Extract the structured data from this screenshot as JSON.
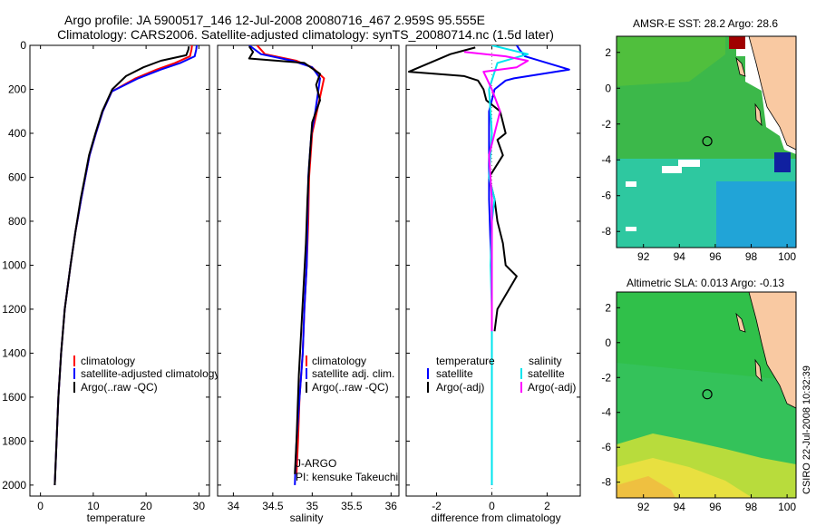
{
  "title": {
    "line1": "Argo profile: JA 5900517_146 12-Jul-2008 20080716_467 2.959S 95.555E",
    "line2": "Climatology: CARS2006. Satellite-adjusted climatology: synTS_20080714.nc (1.5d later)"
  },
  "colors": {
    "clim": "#ff0000",
    "sat": "#0000ff",
    "argo": "#000000",
    "sal_sat": "#00e5ee",
    "sal_argo": "#ff00ff"
  },
  "map_colors": {
    "land": "#f9c9a2",
    "nodata": "#ffffff",
    "sst_green": "#3cb84a",
    "sst_teal": "#2ec8a0",
    "sst_blue": "#1a7fe0",
    "sst_dark": "#1020a0",
    "sst_hot": "#a00000",
    "sla_green": "#34c25a",
    "sla_yellow": "#e8e040"
  },
  "credit": "CSIRO 22-Jul-2008 10:32:39",
  "chart_data": [
    {
      "type": "line",
      "id": "temperature",
      "xlabel": "temperature",
      "xlim": [
        -2,
        32
      ],
      "ylim": [
        2050,
        0
      ],
      "xticks": [
        "0",
        "10",
        "20",
        "30"
      ],
      "xtick_values": [
        0,
        10,
        20,
        30
      ],
      "yticks": [
        "0",
        "200",
        "400",
        "600",
        "800",
        "1000",
        "1200",
        "1400",
        "1600",
        "1800",
        "2000"
      ],
      "ytick_values": [
        0,
        200,
        400,
        600,
        800,
        1000,
        1200,
        1400,
        1600,
        1800,
        2000
      ],
      "legend": [
        "climatology",
        "satellite-adjusted climatology",
        "Argo(..raw -QC)"
      ],
      "series": [
        {
          "name": "climatology",
          "color": "clim",
          "x": [
            28.7,
            28.6,
            28.3,
            25.5,
            22,
            18,
            13.5,
            11.8,
            10.5,
            9.3,
            8.5,
            7.7,
            6.6,
            5.7,
            4.6,
            3.9,
            3.4,
            2.7
          ],
          "y": [
            0,
            20,
            50,
            80,
            110,
            150,
            210,
            300,
            400,
            500,
            600,
            700,
            850,
            1000,
            1200,
            1400,
            1600,
            2000
          ]
        },
        {
          "name": "satellite",
          "color": "sat",
          "x": [
            29.6,
            29.5,
            29.2,
            26.5,
            22.8,
            18.5,
            13.5,
            11.8,
            10.5,
            9.3,
            8.5,
            7.7,
            6.6,
            5.7,
            4.6,
            3.9,
            3.4,
            2.7
          ],
          "y": [
            0,
            20,
            50,
            80,
            110,
            150,
            210,
            300,
            400,
            500,
            600,
            700,
            850,
            1000,
            1200,
            1400,
            1600,
            2000
          ]
        },
        {
          "name": "Argo",
          "color": "argo",
          "x": [
            28.1,
            28.0,
            27.6,
            22.8,
            19.5,
            16.2,
            13.6,
            11.7,
            10.4,
            9.2,
            8.4,
            7.6,
            6.6,
            5.7,
            4.6,
            3.9,
            3.4,
            2.7
          ],
          "y": [
            5,
            20,
            45,
            70,
            100,
            140,
            200,
            300,
            400,
            500,
            600,
            700,
            850,
            1000,
            1200,
            1400,
            1600,
            2000
          ]
        }
      ]
    },
    {
      "type": "line",
      "id": "salinity",
      "xlabel": "salinity",
      "xlim": [
        33.8,
        36.1
      ],
      "ylim": [
        2050,
        0
      ],
      "xticks": [
        "34",
        "34.5",
        "35",
        "35.5",
        "36"
      ],
      "xtick_values": [
        34,
        34.5,
        35,
        35.5,
        36
      ],
      "legend": [
        "climatology",
        "satellite adj. clim.",
        "Argo(..raw -QC)"
      ],
      "annotation": [
        "J-ARGO",
        "PI: kensuke Takeuchi"
      ],
      "series": [
        {
          "name": "climatology",
          "color": "clim",
          "x": [
            34.3,
            34.4,
            34.8,
            35.0,
            35.15,
            35.12,
            35.06,
            35.0,
            34.98,
            34.96,
            34.95,
            34.93,
            34.9,
            34.88,
            34.84,
            34.82,
            34.8
          ],
          "y": [
            0,
            40,
            70,
            100,
            150,
            200,
            300,
            400,
            500,
            600,
            800,
            1000,
            1200,
            1400,
            1600,
            1800,
            1950
          ]
        },
        {
          "name": "satellite",
          "color": "sat",
          "x": [
            34.2,
            34.35,
            34.75,
            35.0,
            35.1,
            35.08,
            35.04,
            34.99,
            34.97,
            34.95,
            34.94,
            34.93,
            34.9,
            34.88,
            34.84,
            34.8,
            34.78
          ],
          "y": [
            0,
            40,
            70,
            100,
            150,
            200,
            300,
            400,
            500,
            600,
            800,
            1000,
            1200,
            1400,
            1600,
            1800,
            2000
          ]
        },
        {
          "name": "Argo",
          "color": "argo",
          "x": [
            34.2,
            34.25,
            34.2,
            34.9,
            35.1,
            35.05,
            35.1,
            35.0,
            34.98,
            34.96,
            34.94,
            34.92,
            34.89,
            34.86,
            34.83,
            34.8,
            34.78
          ],
          "y": [
            5,
            30,
            60,
            80,
            130,
            180,
            250,
            350,
            450,
            550,
            700,
            900,
            1100,
            1300,
            1500,
            1800,
            1950
          ]
        }
      ]
    },
    {
      "type": "line",
      "id": "difference",
      "xlabel": "difference from climatology",
      "xlim": [
        -3.1,
        3.2
      ],
      "ylim": [
        2050,
        0
      ],
      "xticks": [
        "-2",
        "0",
        "2"
      ],
      "xtick_values": [
        -2,
        0,
        2
      ],
      "legend_left_title": "temperature",
      "legend_left": [
        "satellite",
        "Argo(-adj)"
      ],
      "legend_right_title": "salinity",
      "legend_right": [
        "satellite",
        "Argo(-adj)"
      ],
      "series": [
        {
          "name": "temperature satellite",
          "color": "sat",
          "x": [
            0.9,
            1.0,
            1.2,
            2.8,
            0.8,
            0.5,
            0.1,
            -0.1,
            -0.1,
            -0.1,
            -0.05,
            0,
            0,
            0,
            0,
            0
          ],
          "y": [
            0,
            20,
            50,
            110,
            150,
            160,
            200,
            300,
            500,
            700,
            900,
            1100,
            1300,
            1500,
            1800,
            2000
          ]
        },
        {
          "name": "temperature Argo(-adj)",
          "color": "argo",
          "x": [
            -0.6,
            -1.5,
            -3.0,
            -1.0,
            -0.5,
            -0.3,
            -0.2,
            0.3,
            0.5,
            0.2,
            0.4,
            -0.1,
            0.1,
            0.2,
            0.4,
            0.5,
            0.9,
            0.2,
            0.1
          ],
          "y": [
            10,
            40,
            120,
            140,
            160,
            200,
            250,
            300,
            400,
            430,
            500,
            600,
            700,
            800,
            900,
            1000,
            1050,
            1200,
            1300
          ]
        },
        {
          "name": "salinity satellite",
          "color": "sal_sat",
          "x": [
            0.0,
            1.3,
            0.2,
            -0.1,
            0,
            -0.1,
            0.1,
            0,
            -0.05,
            0,
            0,
            0,
            0
          ],
          "y": [
            0,
            40,
            80,
            200,
            400,
            600,
            700,
            800,
            1000,
            1200,
            1500,
            1800,
            2000
          ]
        },
        {
          "name": "salinity Argo(-adj)",
          "color": "sal_argo",
          "x": [
            -1.0,
            0.5,
            1.3,
            0.9,
            -0.3,
            0,
            0.3,
            -0.1,
            0,
            0,
            0
          ],
          "y": [
            30,
            50,
            70,
            100,
            120,
            200,
            300,
            500,
            700,
            1000,
            1300
          ]
        }
      ]
    },
    {
      "type": "heatmap",
      "id": "sst-map",
      "title": "AMSR-E SST: 28.2 Argo: 28.6",
      "xlim": [
        90.5,
        100.5
      ],
      "ylim": [
        -8.9,
        2.9
      ],
      "xticks": [
        "92",
        "94",
        "96",
        "98",
        "100"
      ],
      "xtick_values": [
        92,
        94,
        96,
        98,
        100
      ],
      "yticks": [
        "2",
        "0",
        "-2",
        "-4",
        "-6",
        "-8"
      ],
      "ytick_values": [
        2,
        0,
        -2,
        -4,
        -6,
        -8
      ],
      "marker": {
        "lon": 95.555,
        "lat": -2.959
      }
    },
    {
      "type": "heatmap",
      "id": "sla-map",
      "title": "Altimetric SLA: 0.013 Argo: -0.13",
      "xlim": [
        90.5,
        100.5
      ],
      "ylim": [
        -8.9,
        2.9
      ],
      "xticks": [
        "92",
        "94",
        "96",
        "98",
        "100"
      ],
      "xtick_values": [
        92,
        94,
        96,
        98,
        100
      ],
      "yticks": [
        "2",
        "0",
        "-2",
        "-4",
        "-6",
        "-8"
      ],
      "ytick_values": [
        2,
        0,
        -2,
        -4,
        -6,
        -8
      ],
      "marker": {
        "lon": 95.555,
        "lat": -2.959
      }
    }
  ]
}
